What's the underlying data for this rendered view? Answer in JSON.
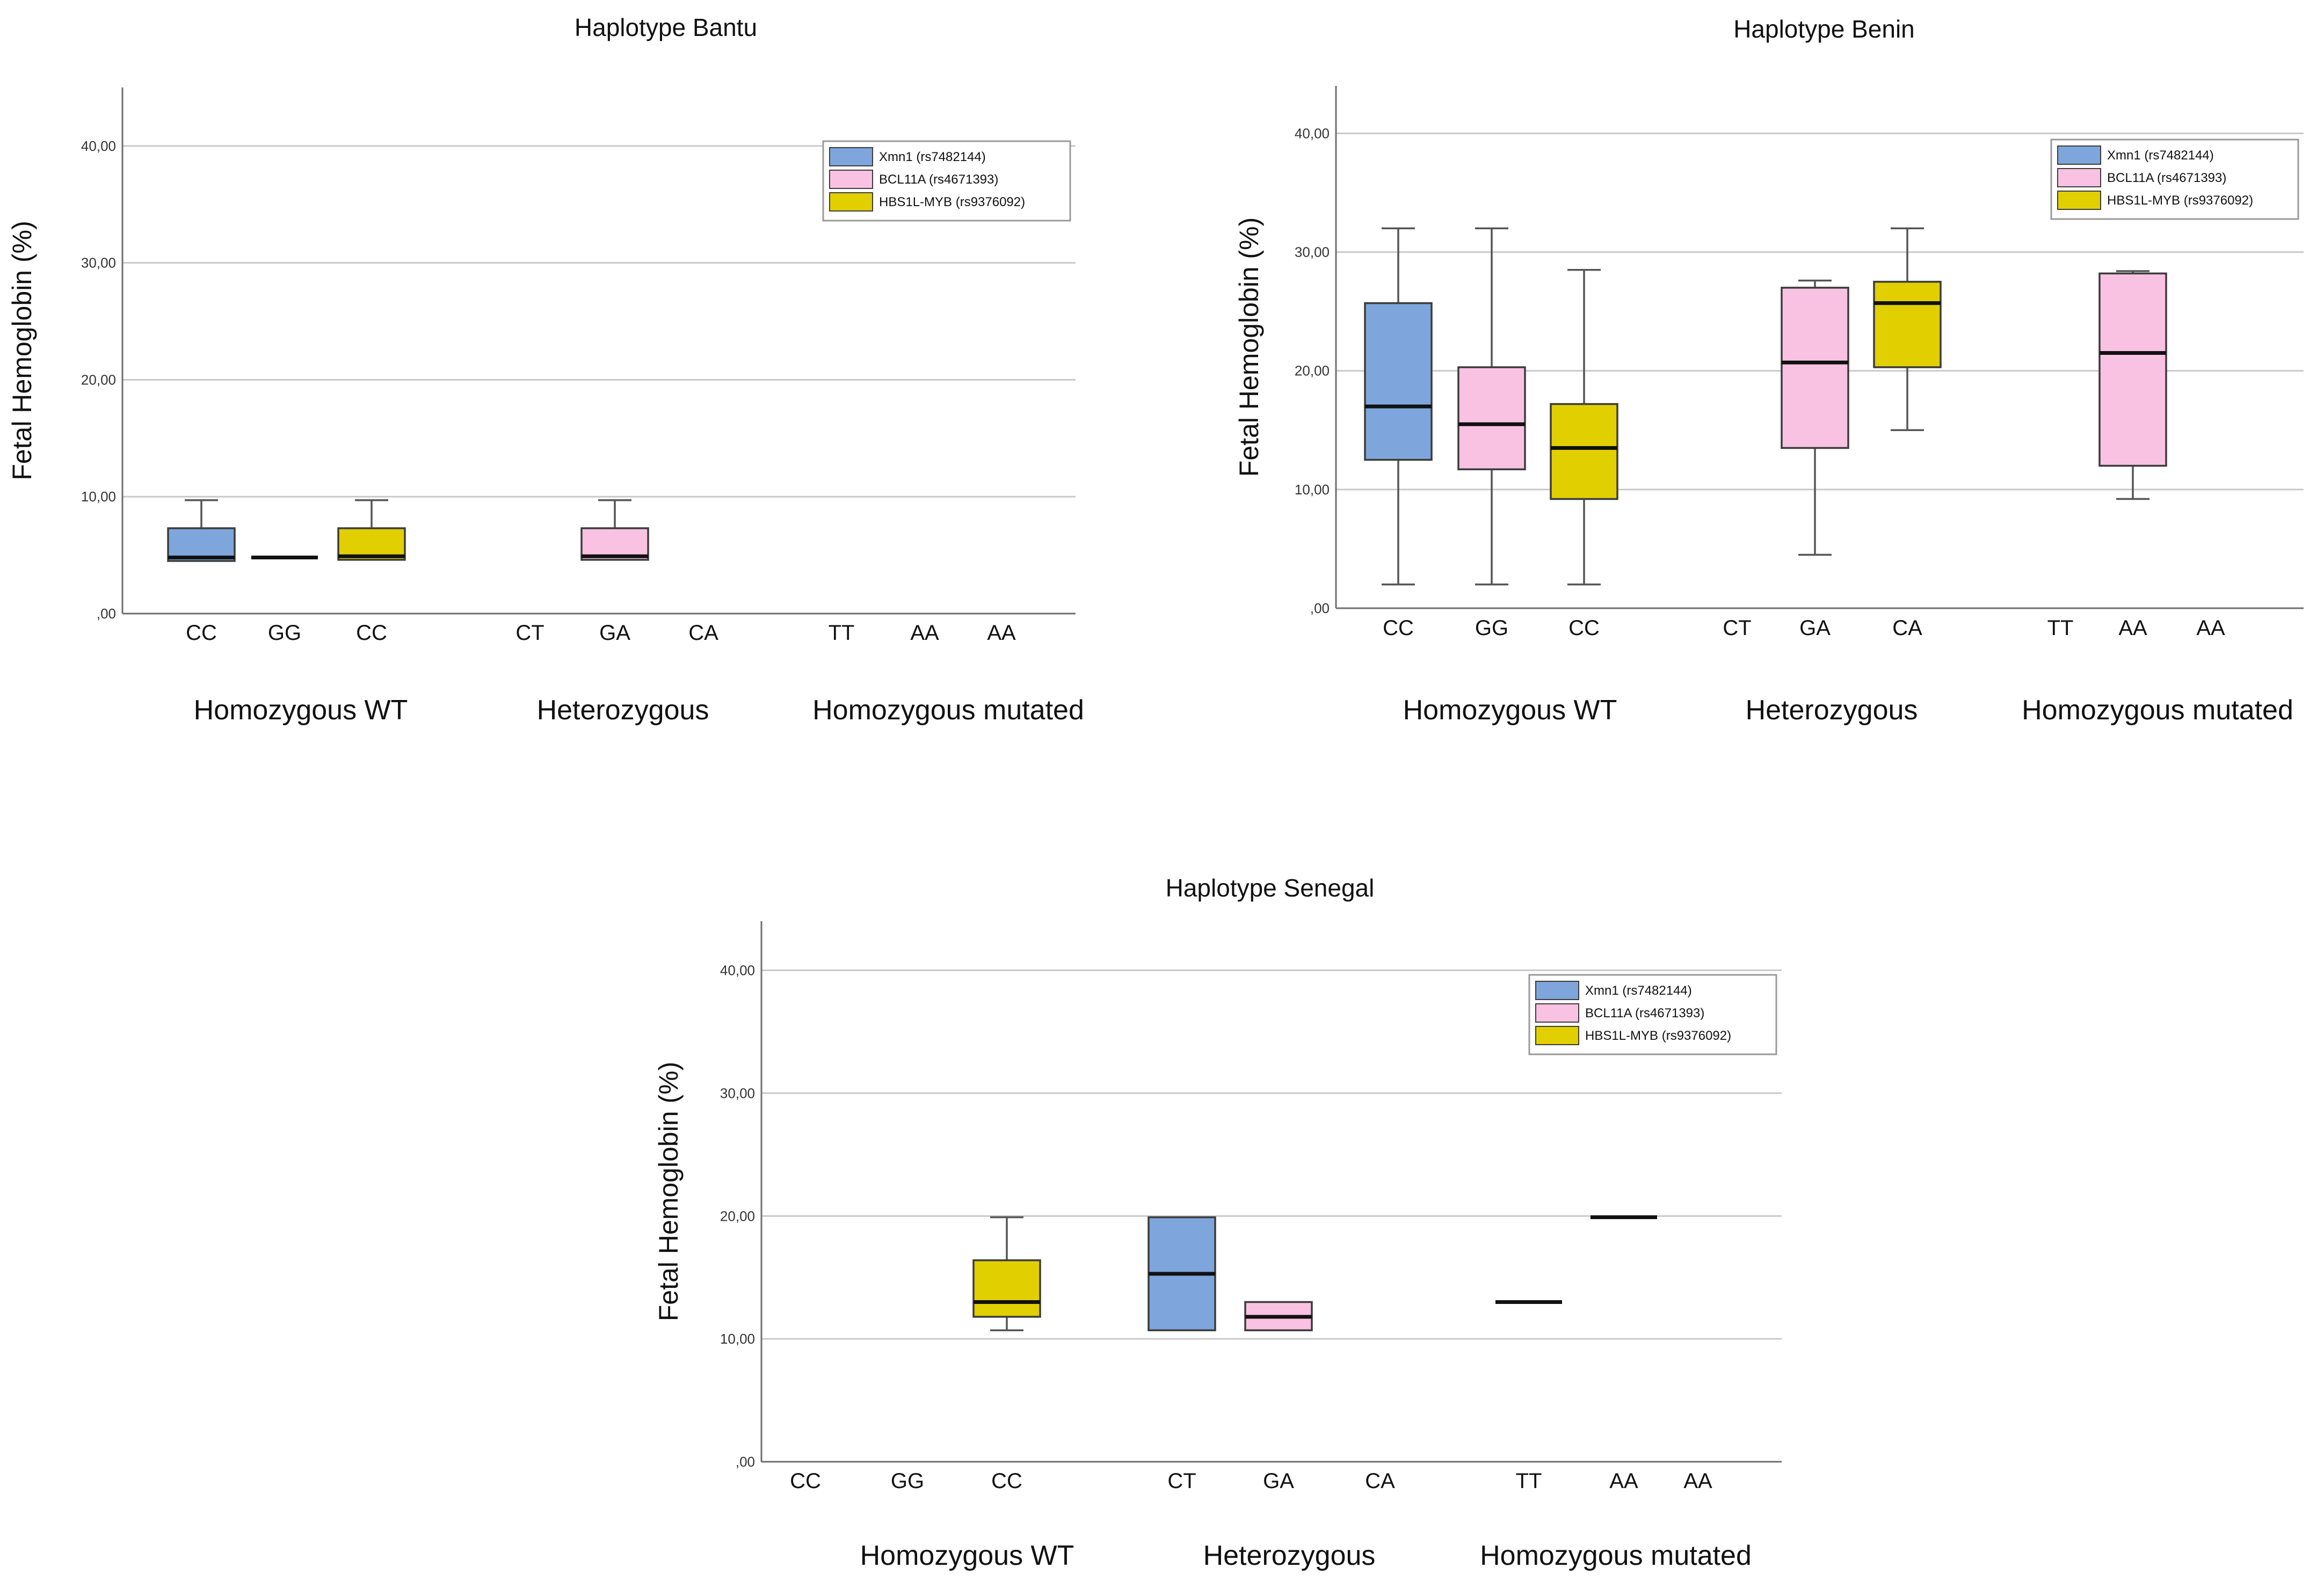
{
  "colors": {
    "xmn1": "#7ea6dc",
    "bcl11a": "#fac2e2",
    "hbs1l_myb": "#e2cf00",
    "grid": "#c9c9c9",
    "axis": "#6e6e6e"
  },
  "chart_data": [
    {
      "type": "boxplot",
      "title": "Haplotype Bantu",
      "ylabel": "Fetal Hemoglobin (%)",
      "ylim": [
        0,
        45
      ],
      "yticks": [
        0,
        10,
        20,
        30,
        40
      ],
      "ytick_labels": [
        ",00",
        "10,00",
        "20,00",
        "30,00",
        "40,00"
      ],
      "grid": true,
      "legend_position": "top-right",
      "legend": [
        "Xmn1 (rs7482144)",
        "BCL11A (rs4671393)",
        "HBS1L-MYB (rs9376092)"
      ],
      "categories": [
        "CC",
        "GG",
        "CC",
        "CT",
        "GA",
        "CA",
        "TT",
        "AA",
        "AA"
      ],
      "category_series": [
        0,
        1,
        2,
        0,
        1,
        2,
        0,
        1,
        2
      ],
      "groups": [
        {
          "label": "Homozygous WT",
          "slots": [
            0,
            1,
            2
          ]
        },
        {
          "label": "Heterozygous",
          "slots": [
            3,
            4,
            5
          ]
        },
        {
          "label": "Homozygous mutated",
          "slots": [
            6,
            7,
            8
          ]
        }
      ],
      "boxes": [
        {
          "slot": 0,
          "min": 4.5,
          "q1": 4.5,
          "median": 4.8,
          "q3": 7.3,
          "max": 9.7
        },
        {
          "slot": 1,
          "min": 4.8,
          "q1": 4.8,
          "median": 4.8,
          "q3": 4.8,
          "max": 4.8
        },
        {
          "slot": 2,
          "min": 4.6,
          "q1": 4.6,
          "median": 4.9,
          "q3": 7.3,
          "max": 9.7
        },
        {
          "slot": 4,
          "min": 4.6,
          "q1": 4.6,
          "median": 4.9,
          "q3": 7.3,
          "max": 9.7
        }
      ]
    },
    {
      "type": "boxplot",
      "title": "Haplotype Benin",
      "ylabel": "Fetal Hemoglobin (%)",
      "ylim": [
        0,
        44
      ],
      "yticks": [
        0,
        10,
        20,
        30,
        40
      ],
      "ytick_labels": [
        ",00",
        "10,00",
        "20,00",
        "30,00",
        "40,00"
      ],
      "grid": true,
      "legend_position": "top-right",
      "legend": [
        "Xmn1 (rs7482144)",
        "BCL11A (rs4671393)",
        "HBS1L-MYB (rs9376092)"
      ],
      "categories": [
        "CC",
        "GG",
        "CC",
        "CT",
        "GA",
        "CA",
        "TT",
        "AA",
        "AA"
      ],
      "category_series": [
        0,
        1,
        2,
        0,
        1,
        2,
        0,
        1,
        2
      ],
      "groups": [
        {
          "label": "Homozygous WT",
          "slots": [
            0,
            1,
            2
          ]
        },
        {
          "label": "Heterozygous",
          "slots": [
            3,
            4,
            5
          ]
        },
        {
          "label": "Homozygous mutated",
          "slots": [
            6,
            7,
            8
          ]
        }
      ],
      "boxes": [
        {
          "slot": 0,
          "min": 2.0,
          "q1": 12.5,
          "median": 17.0,
          "q3": 25.7,
          "max": 32.0
        },
        {
          "slot": 1,
          "min": 2.0,
          "q1": 11.7,
          "median": 15.5,
          "q3": 20.3,
          "max": 32.0
        },
        {
          "slot": 2,
          "min": 2.0,
          "q1": 9.2,
          "median": 13.5,
          "q3": 17.2,
          "max": 28.5
        },
        {
          "slot": 4,
          "min": 4.5,
          "q1": 13.5,
          "median": 20.7,
          "q3": 27.0,
          "max": 27.6
        },
        {
          "slot": 5,
          "min": 15.0,
          "q1": 20.3,
          "median": 25.7,
          "q3": 27.5,
          "max": 32.0
        },
        {
          "slot": 7,
          "min": 9.2,
          "q1": 12.0,
          "median": 21.5,
          "q3": 28.2,
          "max": 28.4
        }
      ]
    },
    {
      "type": "boxplot",
      "title": "Haplotype Senegal",
      "ylabel": "Fetal Hemoglobin (%)",
      "ylim": [
        0,
        44
      ],
      "yticks": [
        0,
        10,
        20,
        30,
        40
      ],
      "ytick_labels": [
        ",00",
        "10,00",
        "20,00",
        "30,00",
        "40,00"
      ],
      "grid": true,
      "legend_position": "top-right",
      "legend": [
        "Xmn1 (rs7482144)",
        "BCL11A (rs4671393)",
        "HBS1L-MYB (rs9376092)"
      ],
      "categories": [
        "CC",
        "GG",
        "CC",
        "CT",
        "GA",
        "CA",
        "TT",
        "AA",
        "AA"
      ],
      "category_series": [
        0,
        1,
        2,
        0,
        1,
        2,
        0,
        1,
        2
      ],
      "groups": [
        {
          "label": "Homozygous WT",
          "slots": [
            0,
            1,
            2
          ]
        },
        {
          "label": "Heterozygous",
          "slots": [
            3,
            4,
            5
          ]
        },
        {
          "label": "Homozygous mutated",
          "slots": [
            6,
            7,
            8
          ]
        }
      ],
      "boxes": [
        {
          "slot": 2,
          "min": 10.7,
          "q1": 11.8,
          "median": 13.0,
          "q3": 16.4,
          "max": 19.9
        },
        {
          "slot": 3,
          "min": 10.7,
          "q1": 10.7,
          "median": 15.3,
          "q3": 19.9,
          "max": 19.9
        },
        {
          "slot": 4,
          "min": 10.7,
          "q1": 10.7,
          "median": 11.8,
          "q3": 13.0,
          "max": 13.0
        },
        {
          "slot": 6,
          "min": 13.0,
          "q1": 13.0,
          "median": 13.0,
          "q3": 13.0,
          "max": 13.0
        },
        {
          "slot": 7,
          "min": 19.9,
          "q1": 19.9,
          "median": 19.9,
          "q3": 19.9,
          "max": 19.9
        }
      ]
    }
  ]
}
